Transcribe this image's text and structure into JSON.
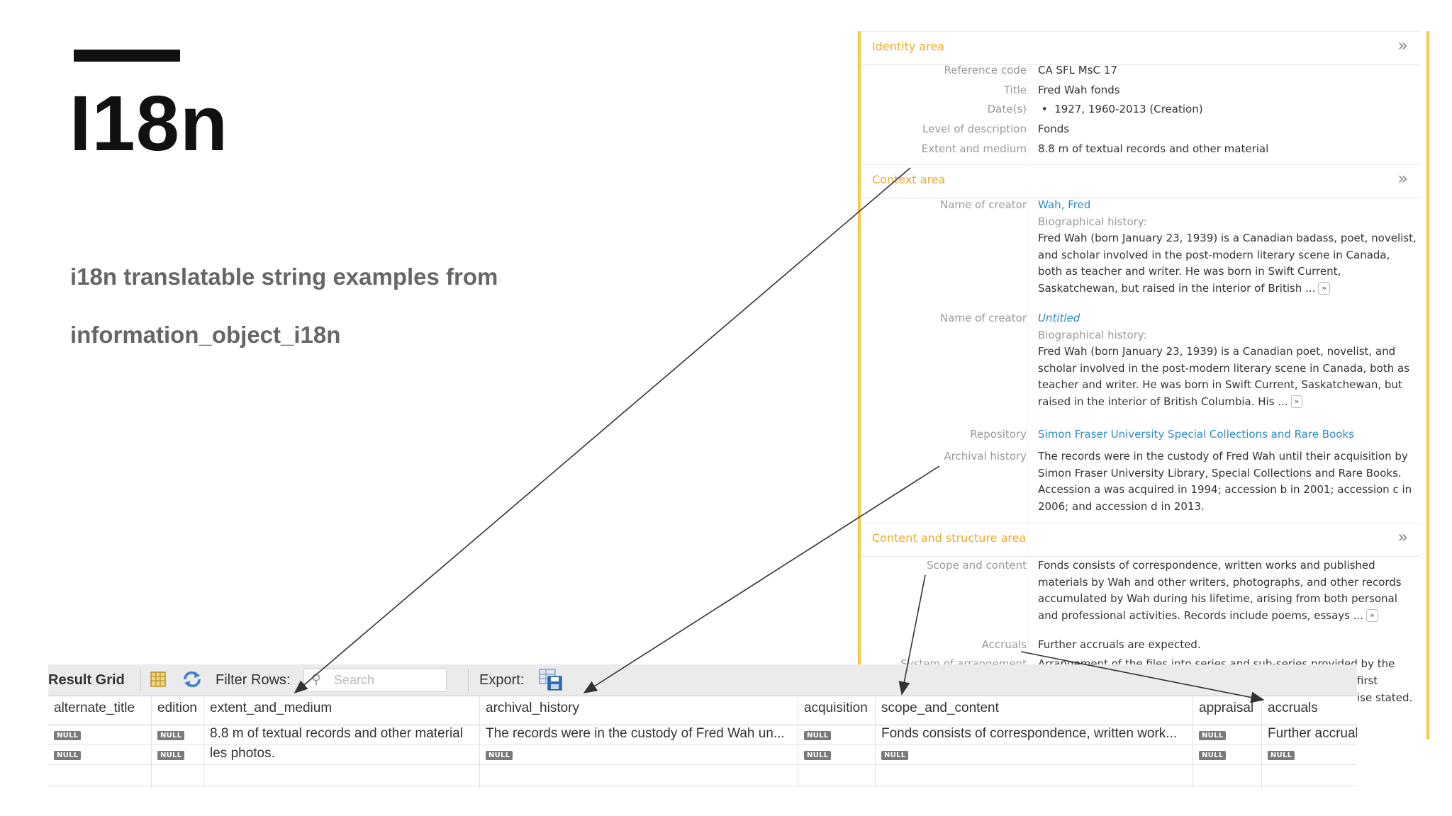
{
  "slide": {
    "title": "I18n",
    "subtitle_line1": "i18n translatable string examples from",
    "subtitle_line2": "information_object_i18n"
  },
  "record_panel": {
    "identity_area": {
      "title": "Identity area",
      "rows": [
        {
          "label": "Reference code",
          "value": "CA SFL MsC 17"
        },
        {
          "label": "Title",
          "value": "Fred Wah fonds"
        },
        {
          "label": "Date(s)",
          "value": "1927, 1960-2013 (Creation)"
        },
        {
          "label": "Level of description",
          "value": "Fonds"
        },
        {
          "label": "Extent and medium",
          "value": "8.8 m of textual records and other material"
        }
      ]
    },
    "context_area": {
      "title": "Context area",
      "creator1": {
        "label": "Name of creator",
        "name": "Wah, Fred",
        "bio_label": "Biographical history:",
        "bio_text": "Fred Wah (born January 23, 1939) is a Canadian badass, poet, novelist, and scholar involved in the post-modern literary scene in Canada, both as teacher and writer. He was born in Swift Current, Saskatchewan, but raised in the interior of British ..."
      },
      "creator2": {
        "label": "Name of creator",
        "name": "Untitled",
        "bio_label": "Biographical history:",
        "bio_text": "Fred Wah (born January 23, 1939) is a Canadian poet, novelist, and scholar involved in the post-modern literary scene in Canada, both as teacher and writer. He was born in Swift Current, Saskatchewan, but raised in the interior of British Columbia. His ..."
      },
      "repository": {
        "label": "Repository",
        "value": "Simon Fraser University Special Collections and Rare Books"
      },
      "archival_history": {
        "label": "Archival history",
        "value": "The records were in the custody of Fred Wah until their acquisition by Simon Fraser University Library, Special Collections and Rare Books. Accession a was acquired in 1994; accession b in 2001; accession c in 2006; and accession d in 2013."
      }
    },
    "content_area": {
      "title": "Content and structure area",
      "scope": {
        "label": "Scope and content",
        "value": "Fonds consists of correspondence, written works and published materials by Wah and other writers, photographs, and other records accumulated by Wah during his lifetime, arising from both personal and professional activities. Records include poems, essays ..."
      },
      "accruals": {
        "label": "Accruals",
        "value": "Further accruals are expected."
      },
      "arrangement": {
        "label": "System of arrangement",
        "value_line1": "Arrangement of the files into series and sub-series provided by the",
        "value_line2": "first",
        "value_line3": "ise stated."
      }
    },
    "more_label": "»",
    "expand_label": "»"
  },
  "toolbar": {
    "result_grid": "Result Grid",
    "filter_rows": "Filter Rows:",
    "search_placeholder": "Search",
    "export": "Export:"
  },
  "grid": {
    "columns": [
      "alternate_title",
      "edition",
      "extent_and_medium",
      "archival_history",
      "acquisition",
      "scope_and_content",
      "appraisal",
      "accruals"
    ],
    "null_label": "NULL",
    "row1": {
      "extent_and_medium": "8.8 m of textual records and other material",
      "archival_history": "The records were in the custody of Fred Wah un...",
      "scope_and_content": "Fonds consists of correspondence, written work...",
      "accruals": "Further accrual"
    },
    "row2": {
      "extent_and_medium": "les photos."
    }
  }
}
